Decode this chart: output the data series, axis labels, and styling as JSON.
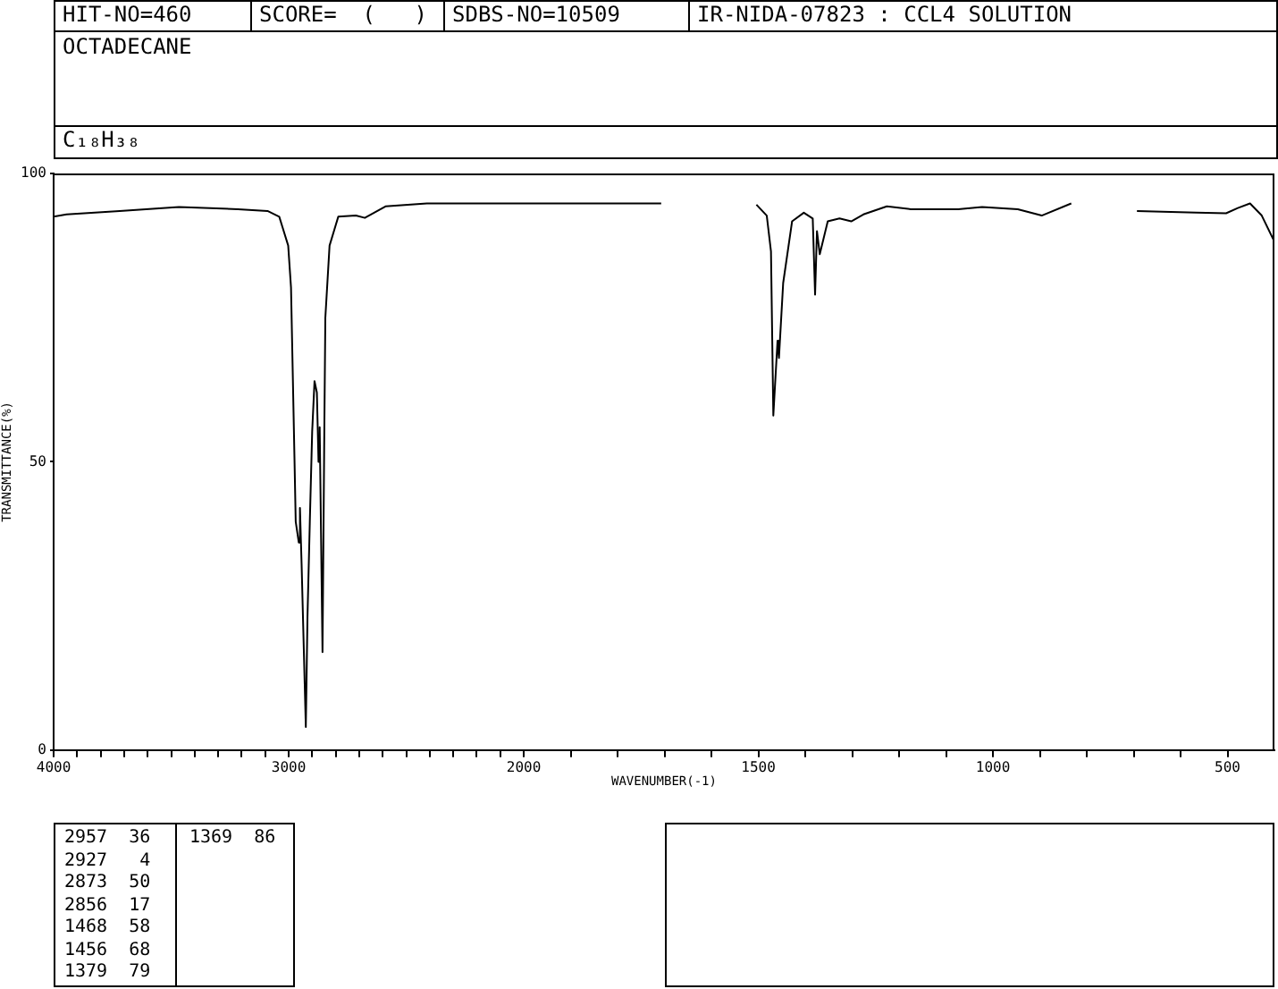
{
  "chart_data": [
    {
      "type": "line",
      "color": "#000000",
      "ylabel": "TRANSMITTANCE(%)",
      "x": [
        4000,
        3945,
        3719,
        3467,
        3216,
        3090,
        3040,
        3002,
        2990,
        2975,
        2970,
        2957,
        2952,
        2945,
        2927,
        2920,
        2910,
        2900,
        2890,
        2880,
        2873,
        2868,
        2856,
        2849,
        2844,
        2826,
        2789,
        2714,
        2676,
        2588,
        2412,
        2200,
        2000
      ],
      "values": [
        92.5,
        92.9,
        93.5,
        94.2,
        93.8,
        93.5,
        92.5,
        87.5,
        80.2,
        50,
        39.6,
        36,
        42,
        32.3,
        4,
        23,
        39.6,
        55.2,
        64,
        62,
        50,
        56,
        17,
        52,
        75,
        87.5,
        92.5,
        92.7,
        92.3,
        94.3,
        94.8,
        94.8,
        94.8
      ],
      "xlim": [
        4000,
        2000
      ],
      "xticks": [
        4000,
        {
          "value": 3900,
          "label": null
        },
        {
          "value": 3800,
          "label": null
        },
        {
          "value": 3700,
          "label": null
        },
        {
          "value": 3600,
          "label": null
        },
        {
          "value": 3500,
          "label": null
        },
        {
          "value": 3400,
          "label": null
        },
        {
          "value": 3300,
          "label": null
        },
        {
          "value": 3200,
          "label": null
        },
        {
          "value": 3100,
          "label": null
        },
        3000,
        {
          "value": 2900,
          "label": null
        },
        {
          "value": 2800,
          "label": null
        },
        {
          "value": 2700,
          "label": null
        },
        {
          "value": 2600,
          "label": null
        },
        {
          "value": 2500,
          "label": null
        },
        {
          "value": 2400,
          "label": null
        },
        {
          "value": 2300,
          "label": null
        },
        {
          "value": 2200,
          "label": null
        },
        {
          "value": 2100,
          "label": null
        },
        2000
      ],
      "ylim": [
        0,
        100
      ],
      "yticks": [
        0,
        50,
        100
      ],
      "annotations": [
        "HIT-NO=460",
        "SCORE=  (   )",
        "SDBS-NO=10509",
        "IR-NIDA-07823 : CCL4 SOLUTION",
        "OCTADECANE",
        "C₁₈H₃₈",
        "2957  36",
        "2927   4",
        "2873  50",
        "2856  17",
        "1468  58",
        "1456  68",
        "1379  79",
        "1369  86"
      ]
    },
    {
      "type": "line",
      "color": "#000000",
      "xlabel": "WAVENUMBER(-1)",
      "tick_labels": "x",
      "x": [
        2000,
        1850,
        1707,
        1600,
        1504,
        1482,
        1473,
        1468,
        1459,
        1456,
        1447,
        1428,
        1403,
        1384,
        1379,
        1375,
        1369,
        1352,
        1327,
        1302,
        1276,
        1226,
        1175,
        1074,
        1023,
        947,
        896,
        833,
        760,
        693,
        567,
        503,
        478,
        452,
        427,
        402
      ],
      "values": [
        94.8,
        94.8,
        94.8,
        null,
        94.6,
        92.7,
        86.5,
        58,
        71,
        68,
        81,
        91.7,
        93.2,
        92.2,
        79,
        90,
        86,
        91.7,
        92.2,
        91.7,
        92.9,
        94.3,
        93.8,
        93.8,
        94.2,
        93.8,
        92.7,
        94.8,
        null,
        93.5,
        93.2,
        93.1,
        94,
        94.8,
        92.7,
        88.5
      ],
      "xlim": [
        2000,
        400
      ],
      "xticks": [
        {
          "value": 1900,
          "label": null
        },
        {
          "value": 1800,
          "label": null
        },
        {
          "value": 1700,
          "label": null
        },
        {
          "value": 1600,
          "label": null
        },
        1500,
        {
          "value": 1400,
          "label": null
        },
        {
          "value": 1300,
          "label": null
        },
        {
          "value": 1200,
          "label": null
        },
        {
          "value": 1100,
          "label": null
        },
        1000,
        {
          "value": 900,
          "label": null
        },
        {
          "value": 800,
          "label": null
        },
        {
          "value": 700,
          "label": null
        },
        {
          "value": 600,
          "label": null
        },
        500
      ],
      "ylim": [
        0,
        100
      ],
      "yticks": [
        0,
        50,
        100
      ]
    }
  ]
}
